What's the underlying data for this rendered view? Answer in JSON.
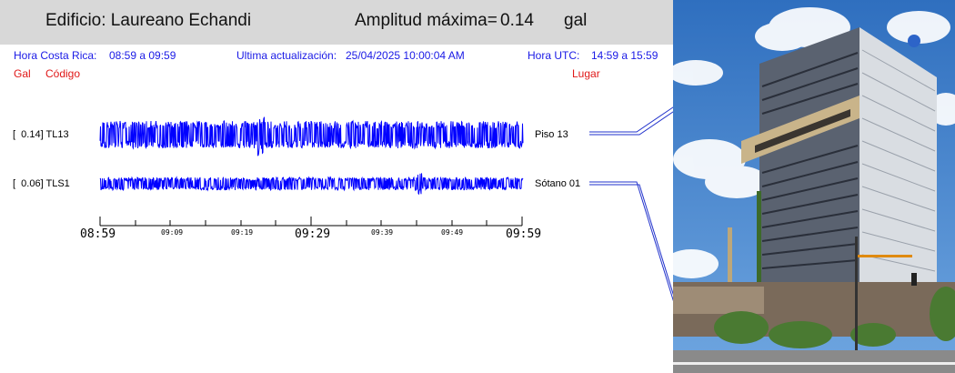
{
  "header": {
    "building_label": "Edificio: Laureano Echandi",
    "amplitude_label": "Amplitud máxima=",
    "amplitude_value": "0.14",
    "amplitude_unit": "gal"
  },
  "info": {
    "local_time_label": "Hora Costa Rica:",
    "local_time_range": "08:59 a 09:59",
    "update_label": "Ultima actualización:",
    "update_value": "25/04/2025 10:00:04 AM",
    "utc_label": "Hora UTC:",
    "utc_range": "14:59 a 15:59",
    "col_gal": "Gal",
    "col_code": "Código",
    "col_place": "Lugar"
  },
  "channels": [
    {
      "label": "[  0.14] TL13",
      "location": "Piso 13",
      "peak_gal": 0.14,
      "color": "#0000ff"
    },
    {
      "label": "[  0.06] TLS1",
      "location": "Sótano 01",
      "peak_gal": 0.06,
      "color": "#0000ff"
    }
  ],
  "time_axis": {
    "major": [
      "08:59",
      "09:29",
      "09:59"
    ],
    "minor": [
      "09:09",
      "09:19",
      "09:39",
      "09:49"
    ]
  },
  "colors": {
    "header_bg": "#d8d8d8",
    "info_text": "#1a1ae6",
    "column_text": "#e01818",
    "trace": "#0000ff"
  }
}
